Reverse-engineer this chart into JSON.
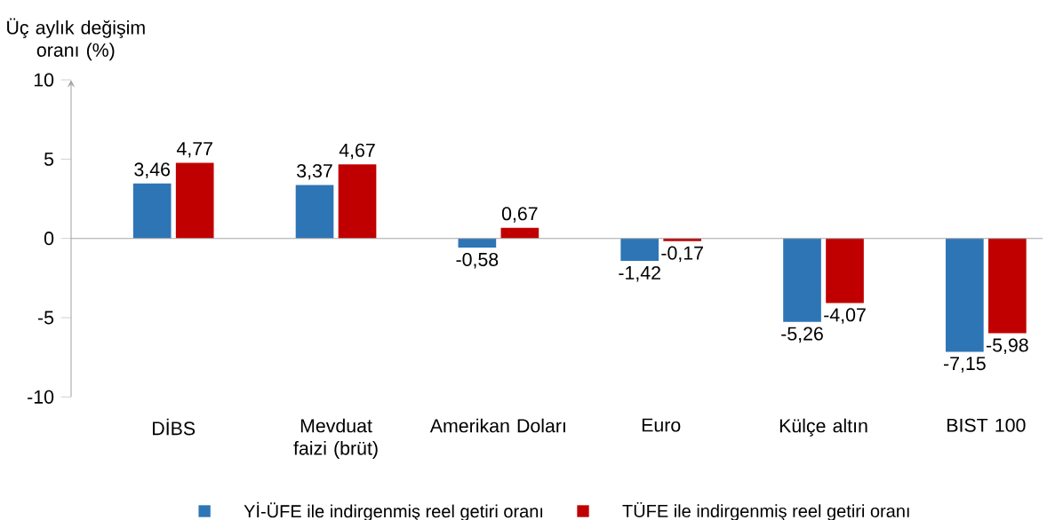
{
  "chart_data": {
    "type": "bar",
    "ylabel": "Üç aylık değişim oranı (%)",
    "categories": [
      "DİBS",
      "Mevduat faizi (brüt)",
      "Amerikan Doları",
      "Euro",
      "Külçe altın",
      "BIST 100"
    ],
    "series": [
      {
        "name": "Yİ-ÜFE ile indirgenmiş reel getiri oranı",
        "color": "#2e75b6",
        "values": [
          3.46,
          3.37,
          -0.58,
          -1.42,
          -5.26,
          -7.15
        ],
        "value_labels": [
          "3,46",
          "3,37",
          "-0,58",
          "-1,42",
          "-5,26",
          "-7,15"
        ]
      },
      {
        "name": "TÜFE ile indirgenmiş reel getiri oranı",
        "color": "#c00000",
        "values": [
          4.77,
          4.67,
          0.67,
          -0.17,
          -4.07,
          -5.98
        ],
        "value_labels": [
          "4,77",
          "4,67",
          "0,67",
          "-0,17",
          "-4,07",
          "-5,98"
        ]
      }
    ],
    "ylim": [
      -10,
      10
    ],
    "yticks": [
      -10,
      -5,
      0,
      5,
      10
    ],
    "legend": "bottom"
  }
}
